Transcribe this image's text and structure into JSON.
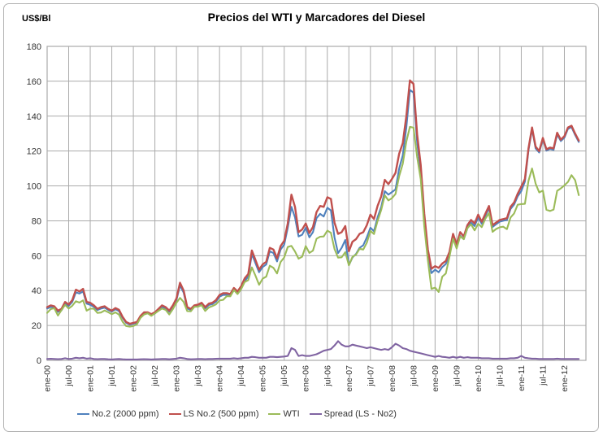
{
  "header": {
    "title": "Precios del WTI y Marcadores del Diesel",
    "y_axis_unit": "US$/Bl"
  },
  "chart_data": {
    "type": "line",
    "title": "Precios del WTI y Marcadores del Diesel",
    "ylabel": "US$/Bl",
    "xlabel": "",
    "ylim": [
      0,
      180
    ],
    "ytick_step": 20,
    "grid": true,
    "legend_position": "bottom",
    "x_start_month": "ene-00",
    "x_tick_interval_months": 6,
    "x_axis_span_months": 150,
    "x_tick_labels": [
      "ene-00",
      "jul-00",
      "ene-01",
      "jul-01",
      "ene-02",
      "jul-02",
      "ene-03",
      "jul-03",
      "ene-04",
      "jul-04",
      "ene-05",
      "jul-05",
      "ene-06",
      "jul-06",
      "ene-07",
      "jul-07",
      "ene-08",
      "jul-08",
      "ene-09",
      "jul-09",
      "ene-10",
      "jul-10",
      "ene-11",
      "jul-11",
      "ene-12"
    ],
    "series": [
      {
        "name": "No.2 (2000 ppm)",
        "color": "#4F81BD",
        "values": [
          29.7,
          30.6,
          30.2,
          27.8,
          28.7,
          32.3,
          31.2,
          33.5,
          39.0,
          38.3,
          39.5,
          32.5,
          31.8,
          30.7,
          28.8,
          29.7,
          30.2,
          28.9,
          28.0,
          29.3,
          28.2,
          24.4,
          21.5,
          20.5,
          21.0,
          21.5,
          24.9,
          26.8,
          26.9,
          26.0,
          26.9,
          28.8,
          30.7,
          29.7,
          27.9,
          30.7,
          34.5,
          43.0,
          38.8,
          29.7,
          28.9,
          30.8,
          31.2,
          32.2,
          29.8,
          31.7,
          32.2,
          33.6,
          36.5,
          37.5,
          37.5,
          37.0,
          40.3,
          38.5,
          41.3,
          45.5,
          48.0,
          61.0,
          55.7,
          50.5,
          53.5,
          55.0,
          62.5,
          61.5,
          56.7,
          63.5,
          66.3,
          76.0,
          88.0,
          82.0,
          71.0,
          72.0,
          76.0,
          70.5,
          73.5,
          81.5,
          84.0,
          82.5,
          87.5,
          86.0,
          70.5,
          61.5,
          64.5,
          69.0,
          54.5,
          59.0,
          61.0,
          64.5,
          66.0,
          70.5,
          76.0,
          74.0,
          82.0,
          88.0,
          97.0,
          95.0,
          96.5,
          98.0,
          110.0,
          117.5,
          133.5,
          155.0,
          153.5,
          125.0,
          108.0,
          80.5,
          60.5,
          50.0,
          52.0,
          50.5,
          53.5,
          55.2,
          60.5,
          70.5,
          65.0,
          71.5,
          69.5,
          75.7,
          79.0,
          77.0,
          82.0,
          78.3,
          82.8,
          87.3,
          76.5,
          78.0,
          79.5,
          80.0,
          80.5,
          86.8,
          89.3,
          94.0,
          97.0,
          102.5,
          120.3,
          132.5,
          121.5,
          119.2,
          126.7,
          120.2,
          121.2,
          120.7,
          129.5,
          125.7,
          127.7,
          132.7,
          133.7,
          129.2,
          125.2
        ]
      },
      {
        "name": "LS No.2 (500 ppm)",
        "color": "#C0504D",
        "values": [
          30.5,
          31.5,
          31.0,
          28.5,
          29.5,
          33.5,
          32.0,
          34.5,
          40.5,
          39.5,
          41.0,
          33.5,
          33.0,
          31.5,
          29.5,
          30.5,
          31.0,
          29.5,
          28.5,
          30.0,
          29.0,
          25.0,
          22.0,
          21.0,
          21.5,
          22.0,
          25.5,
          27.5,
          27.5,
          26.5,
          27.5,
          29.5,
          31.5,
          30.5,
          28.5,
          31.5,
          35.5,
          44.5,
          40.0,
          30.5,
          29.5,
          31.5,
          32.0,
          33.0,
          30.5,
          32.5,
          33.0,
          34.5,
          37.5,
          38.5,
          38.5,
          38.0,
          41.5,
          39.5,
          42.5,
          47.0,
          49.5,
          63.0,
          57.5,
          52.0,
          55.0,
          56.5,
          64.5,
          63.5,
          58.5,
          65.5,
          68.5,
          78.5,
          95.0,
          88.0,
          73.5,
          75.0,
          78.5,
          73.0,
          76.5,
          85.0,
          88.5,
          88.0,
          93.5,
          92.5,
          79.0,
          72.5,
          73.5,
          77.0,
          62.5,
          68.0,
          69.5,
          72.5,
          73.5,
          77.5,
          83.5,
          81.0,
          88.5,
          94.0,
          103.5,
          101.0,
          104.0,
          107.5,
          118.5,
          124.5,
          140.0,
          160.5,
          158.5,
          129.5,
          112.0,
          84.0,
          63.5,
          52.5,
          54.0,
          53.0,
          55.5,
          57.0,
          62.0,
          72.5,
          66.5,
          73.5,
          71.0,
          77.5,
          80.5,
          78.5,
          83.5,
          79.5,
          84.0,
          88.5,
          77.5,
          79.0,
          80.5,
          81.0,
          81.5,
          88.0,
          90.5,
          95.5,
          99.5,
          104.0,
          121.5,
          133.5,
          122.5,
          120.0,
          127.5,
          121.0,
          122.0,
          121.5,
          130.5,
          126.5,
          128.5,
          133.5,
          134.5,
          130.0,
          126.0
        ]
      },
      {
        "name": "WTI",
        "color": "#9BBB59",
        "values": [
          27.2,
          29.4,
          29.9,
          25.7,
          28.8,
          31.8,
          29.7,
          31.3,
          33.9,
          33.1,
          34.4,
          28.5,
          29.6,
          29.6,
          27.2,
          27.4,
          28.6,
          27.6,
          26.5,
          27.5,
          26.2,
          22.2,
          19.7,
          19.3,
          19.7,
          20.7,
          24.4,
          26.3,
          27.0,
          25.5,
          26.9,
          28.4,
          29.7,
          28.9,
          26.3,
          29.4,
          33.0,
          35.8,
          33.5,
          28.2,
          28.1,
          30.7,
          30.8,
          31.6,
          28.3,
          30.3,
          31.1,
          32.1,
          34.3,
          34.7,
          36.8,
          36.7,
          40.3,
          38.0,
          40.8,
          44.9,
          46.0,
          53.3,
          48.5,
          43.3,
          46.8,
          48.0,
          54.3,
          53.0,
          49.8,
          56.4,
          59.0,
          65.0,
          65.6,
          62.4,
          58.3,
          59.4,
          65.5,
          61.6,
          62.9,
          69.7,
          70.9,
          71.0,
          74.4,
          73.1,
          63.9,
          58.9,
          59.1,
          62.0,
          54.5,
          59.3,
          60.6,
          64.0,
          63.5,
          67.5,
          74.2,
          72.4,
          79.9,
          86.2,
          94.6,
          91.7,
          93.0,
          95.4,
          105.6,
          112.6,
          125.4,
          133.9,
          133.4,
          116.6,
          103.9,
          76.7,
          57.4,
          41.0,
          41.7,
          39.2,
          48.0,
          49.8,
          59.2,
          69.7,
          64.1,
          71.1,
          69.5,
          75.8,
          78.0,
          74.5,
          78.3,
          76.4,
          81.2,
          84.4,
          73.7,
          75.3,
          76.3,
          76.6,
          75.2,
          81.9,
          84.2,
          89.2,
          89.6,
          89.7,
          102.9,
          110.0,
          101.3,
          96.3,
          97.3,
          86.3,
          85.6,
          86.4,
          97.2,
          98.6,
          100.3,
          102.3,
          106.2,
          103.3,
          94.7
        ]
      },
      {
        "name": "Spread (LS - No2)",
        "color": "#8064A2",
        "values": [
          0.8,
          0.9,
          0.8,
          0.7,
          0.8,
          1.2,
          0.8,
          1.0,
          1.5,
          1.2,
          1.5,
          1.0,
          1.2,
          0.8,
          0.7,
          0.8,
          0.8,
          0.6,
          0.5,
          0.7,
          0.8,
          0.6,
          0.5,
          0.5,
          0.5,
          0.5,
          0.6,
          0.7,
          0.6,
          0.5,
          0.6,
          0.7,
          0.8,
          0.8,
          0.6,
          0.8,
          1.0,
          1.5,
          1.2,
          0.8,
          0.6,
          0.7,
          0.8,
          0.8,
          0.7,
          0.8,
          0.8,
          0.9,
          1.0,
          1.0,
          1.0,
          1.0,
          1.2,
          1.0,
          1.2,
          1.5,
          1.5,
          2.0,
          1.8,
          1.5,
          1.5,
          1.5,
          2.0,
          2.0,
          1.8,
          2.0,
          2.2,
          2.5,
          7.0,
          6.0,
          2.5,
          3.0,
          2.5,
          2.5,
          3.0,
          3.5,
          4.5,
          5.5,
          6.0,
          6.5,
          8.5,
          11.0,
          9.0,
          8.0,
          8.0,
          9.0,
          8.5,
          8.0,
          7.5,
          7.0,
          7.5,
          7.0,
          6.5,
          6.0,
          6.5,
          6.0,
          7.5,
          9.5,
          8.5,
          7.0,
          6.5,
          5.5,
          5.0,
          4.5,
          4.0,
          3.5,
          3.0,
          2.5,
          2.0,
          2.5,
          2.0,
          1.8,
          1.5,
          2.0,
          1.5,
          2.0,
          1.5,
          1.8,
          1.5,
          1.5,
          1.5,
          1.2,
          1.2,
          1.2,
          1.0,
          1.0,
          1.0,
          1.0,
          1.0,
          1.2,
          1.2,
          1.5,
          2.5,
          1.5,
          1.2,
          1.0,
          1.0,
          0.8,
          0.8,
          0.8,
          0.8,
          0.8,
          1.0,
          0.8,
          0.8,
          0.8,
          0.8,
          0.8,
          0.8
        ]
      }
    ],
    "colors": {
      "grid": "#ABABAB",
      "text": "#333333",
      "title": "#000000"
    }
  }
}
